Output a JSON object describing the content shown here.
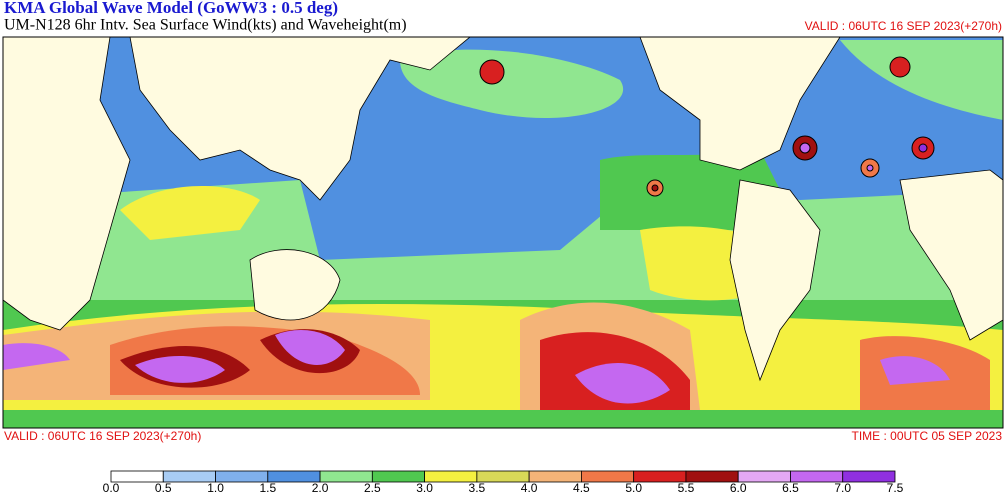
{
  "header": {
    "title": "KMA  Global Wave Model (GoWW3 : 0.5 deg)",
    "subtitle": "UM-N128  6hr Intv. Sea Surface Wind(kts) and Waveheight(m)",
    "valid": "VALID : 06UTC 16 SEP 2023(+270h)"
  },
  "footer": {
    "valid": "VALID : 06UTC 16 SEP 2023(+270h)",
    "time": "TIME : 00UTC 05 SEP 2023"
  },
  "legend": {
    "labels": [
      "0.0",
      "0.5",
      "1.0",
      "1.5",
      "2.0",
      "2.5",
      "3.0",
      "3.5",
      "4.0",
      "4.5",
      "5.0",
      "5.5",
      "6.0",
      "6.5",
      "7.0",
      "7.5"
    ],
    "colors": [
      "#ffffff",
      "#a8ccf4",
      "#80b0ec",
      "#5090e0",
      "#90e690",
      "#50c850",
      "#f4f040",
      "#d8d858",
      "#f4b478",
      "#f07848",
      "#d82020",
      "#a01010",
      "#e4a8f4",
      "#c468f0",
      "#9030e0"
    ]
  }
}
